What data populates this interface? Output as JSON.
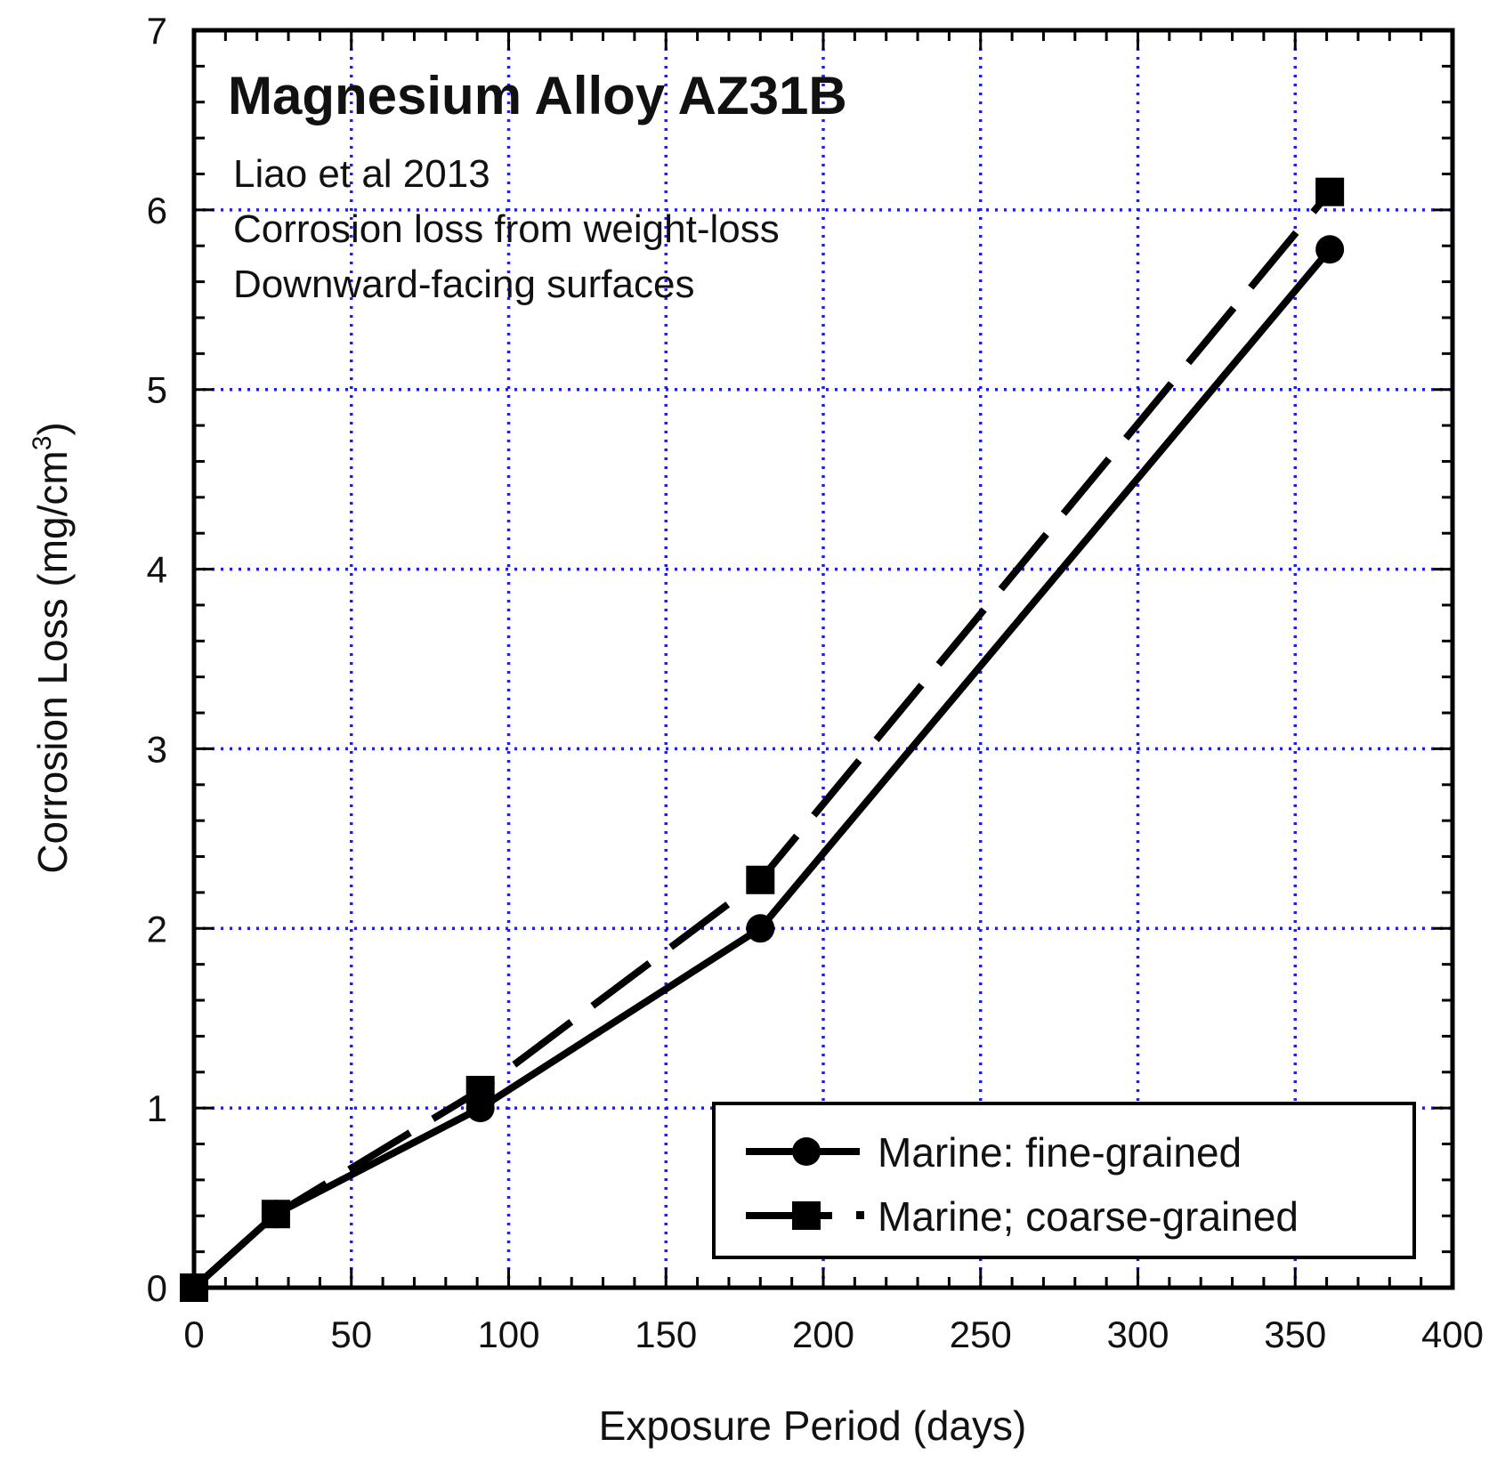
{
  "chart_data": {
    "type": "line",
    "title": "Magnesium Alloy AZ31B",
    "annotations": [
      "Liao et al 2013",
      "Corrosion loss from weight-loss",
      "Downward-facing surfaces"
    ],
    "xlabel": "Exposure Period (days)",
    "ylabel_main": "Corrosion Loss (mg/cm",
    "ylabel_sup": "3",
    "ylabel_close": ")",
    "xlim": [
      0,
      400
    ],
    "ylim": [
      0,
      7
    ],
    "xticks": [
      0,
      50,
      100,
      150,
      200,
      250,
      300,
      350,
      400
    ],
    "yticks": [
      0,
      1,
      2,
      3,
      4,
      5,
      6,
      7
    ],
    "x_tick_labels": [
      "0",
      "50",
      "100",
      "150",
      "200",
      "250",
      "300",
      "350",
      "400"
    ],
    "y_tick_labels": [
      "0",
      "1",
      "2",
      "3",
      "4",
      "5",
      "6",
      "7"
    ],
    "grid": true,
    "grid_color": "#1f1fe6",
    "line_color": "#000000",
    "legend_position": "bottom-right",
    "series": [
      {
        "name": "Marine: fine-grained",
        "marker": "circle",
        "linestyle": "solid",
        "x": [
          0,
          26,
          91,
          180,
          361
        ],
        "y": [
          0,
          0.41,
          1.0,
          2.0,
          5.78
        ]
      },
      {
        "name": "Marine; coarse-grained",
        "marker": "square",
        "linestyle": "dashed",
        "x": [
          0,
          26,
          91,
          180,
          361
        ],
        "y": [
          0,
          0.41,
          1.1,
          2.27,
          6.1
        ]
      }
    ]
  }
}
